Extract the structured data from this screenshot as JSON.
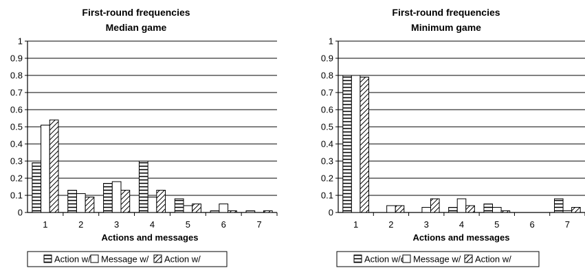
{
  "chart_data": [
    {
      "type": "bar",
      "title": "First-round frequencies",
      "subtitle": "Median game",
      "xlabel": "Actions and messages",
      "ylabel": "",
      "ylim": [
        0,
        1
      ],
      "yticks": [
        "0",
        "0.1",
        "0.2",
        "0.3",
        "0.4",
        "0.5",
        "0.6",
        "0.7",
        "0.8",
        "0.9",
        "1"
      ],
      "categories": [
        "1",
        "2",
        "3",
        "4",
        "5",
        "6",
        "7"
      ],
      "grid": true,
      "legend_position": "bottom",
      "series": [
        {
          "name": "Action w/o",
          "pattern": "horizontal-stripes",
          "values": [
            0.29,
            0.13,
            0.17,
            0.3,
            0.08,
            0.01,
            0.01
          ]
        },
        {
          "name": "Message w/",
          "pattern": "empty",
          "values": [
            0.51,
            0.11,
            0.18,
            0.09,
            0.04,
            0.05,
            0.0
          ]
        },
        {
          "name": "Action w/",
          "pattern": "diagonal-hatch",
          "values": [
            0.54,
            0.09,
            0.13,
            0.13,
            0.05,
            0.01,
            0.01
          ]
        }
      ]
    },
    {
      "type": "bar",
      "title": "First-round frequencies",
      "subtitle": "Minimum game",
      "xlabel": "Actions and messages",
      "ylabel": "",
      "ylim": [
        0,
        1
      ],
      "yticks": [
        "0",
        "0.1",
        "0.2",
        "0.3",
        "0.4",
        "0.5",
        "0.6",
        "0.7",
        "0.8",
        "0.9",
        "1"
      ],
      "categories": [
        "1",
        "2",
        "3",
        "4",
        "5",
        "6",
        "7"
      ],
      "grid": true,
      "legend_position": "bottom",
      "series": [
        {
          "name": "Action w/o",
          "pattern": "horizontal-stripes",
          "values": [
            0.8,
            0.0,
            0.0,
            0.03,
            0.05,
            0.0,
            0.08
          ]
        },
        {
          "name": "Message w/",
          "pattern": "empty",
          "values": [
            0.8,
            0.04,
            0.03,
            0.08,
            0.03,
            0.0,
            0.01
          ]
        },
        {
          "name": "Action w/",
          "pattern": "diagonal-hatch",
          "values": [
            0.79,
            0.04,
            0.08,
            0.04,
            0.01,
            0.0,
            0.03
          ]
        }
      ]
    }
  ]
}
